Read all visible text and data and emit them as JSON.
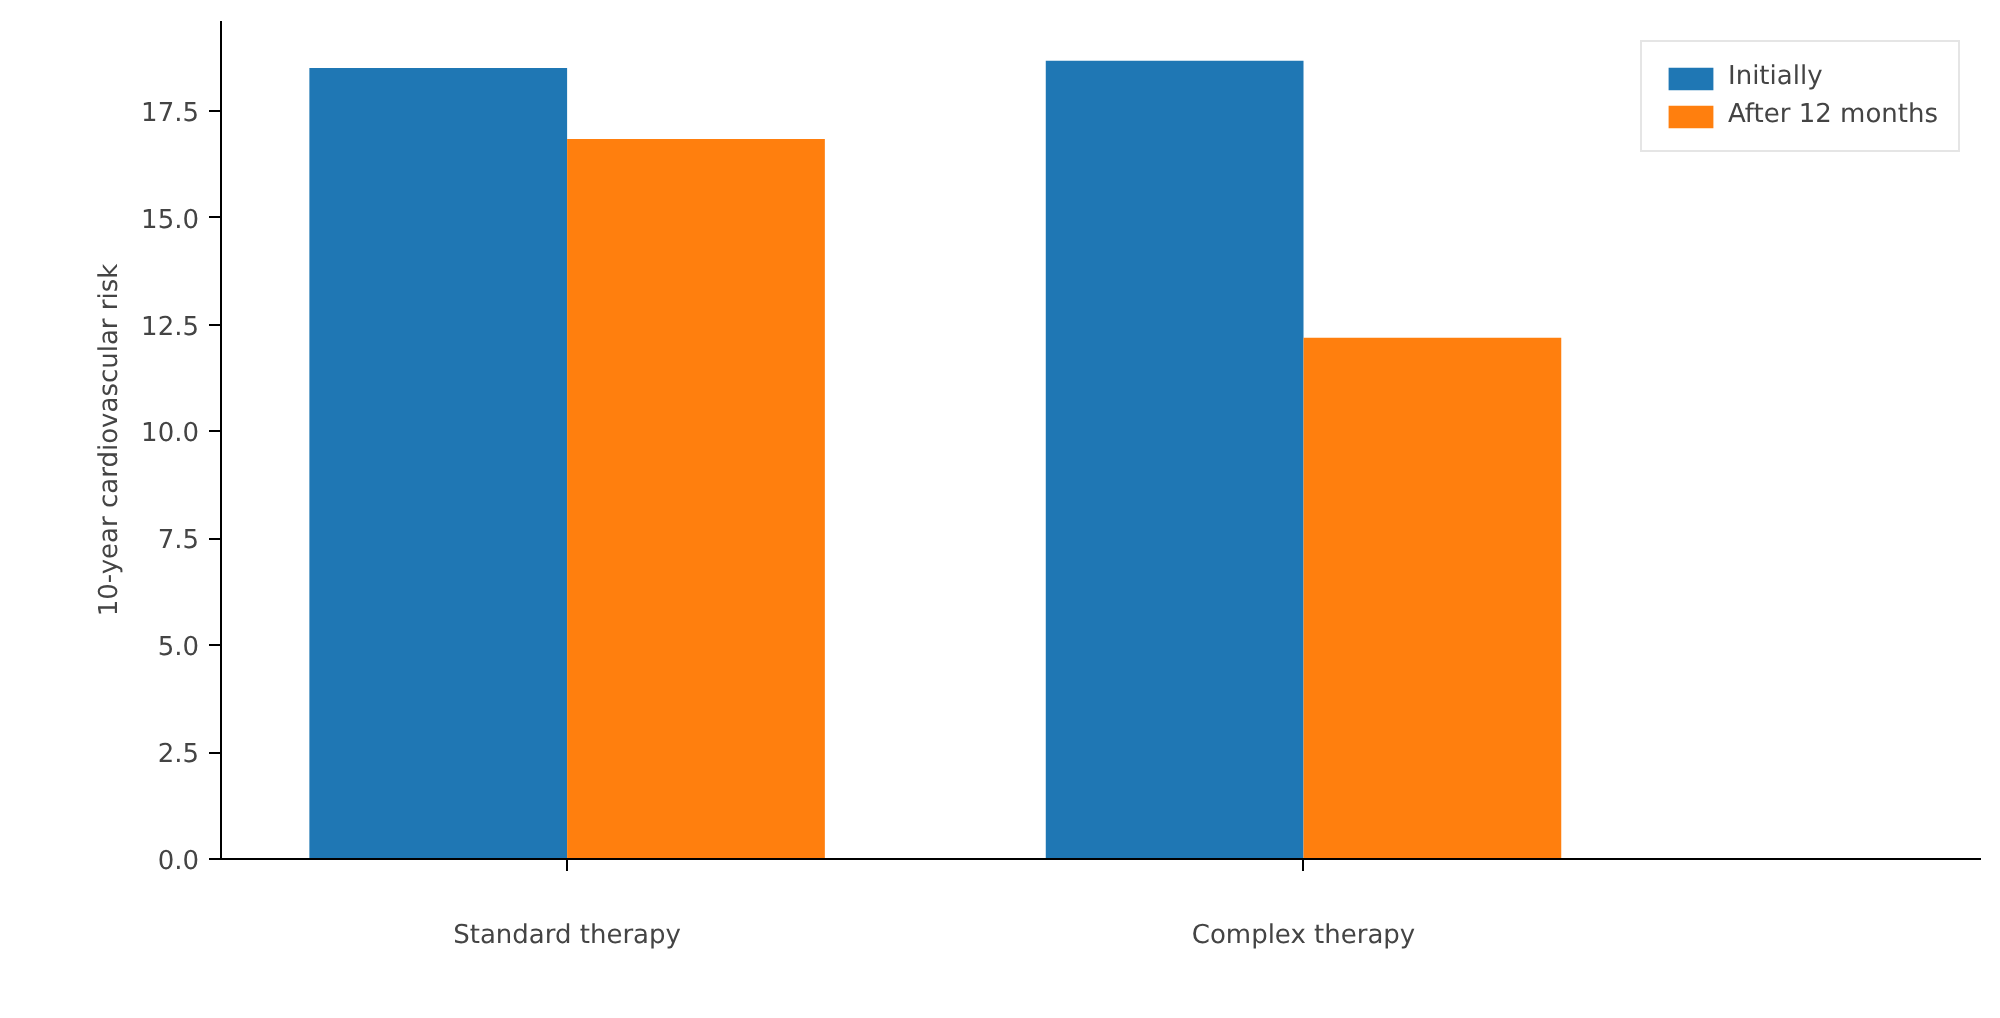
{
  "chart_data": {
    "type": "bar",
    "ylabel": "10-year cardiovascular risk",
    "categories": [
      "Standard therapy",
      "Complex therapy"
    ],
    "series": [
      {
        "name": "Initially",
        "color": "#1f77b4",
        "values": [
          18.5,
          18.67
        ]
      },
      {
        "name": "After 12 months",
        "color": "#ff7f0e",
        "values": [
          16.84,
          12.19
        ]
      }
    ],
    "ylim": [
      0,
      19.6
    ],
    "yticks": [
      {
        "value": 0,
        "label": "0.0"
      },
      2.5,
      {
        "value": 5,
        "label": "5.0"
      },
      7.5,
      {
        "value": 10,
        "label": "10.0"
      },
      12.5,
      {
        "value": 15,
        "label": "15.0"
      },
      17.5
    ],
    "grid": false,
    "legend": "top right"
  }
}
